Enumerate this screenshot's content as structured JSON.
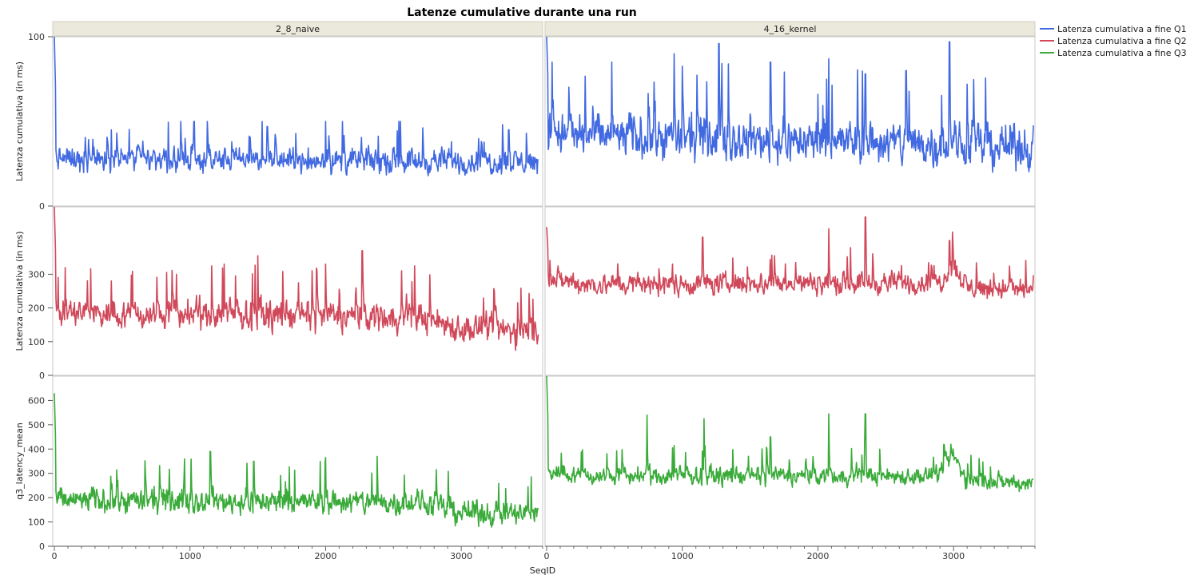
{
  "chart_data": {
    "type": "line",
    "title": "Latenze cumulative durante una run",
    "xlabel": "SeqID",
    "x_ticks": [
      0,
      1000,
      2000,
      3000
    ],
    "columns": [
      {
        "name": "2_8_naive",
        "xlim": [
          0,
          3600
        ]
      },
      {
        "name": "4_16_kernel",
        "xlim": [
          0,
          3600
        ]
      }
    ],
    "legend_position": "top-right",
    "rows": [
      {
        "series_name": "Latenza cumulativa a fine Q1",
        "color": "#4169e1",
        "ylabel": "Latenza cumulativa (in ms)",
        "ylim": [
          0,
          100
        ],
        "y_ticks": [
          0,
          100
        ],
        "y_tick_labels": [
          "0",
          "100"
        ],
        "panels": [
          {
            "first_spike": 100,
            "baseline": [
              [
                0,
                28
              ],
              [
                3600,
                26
              ]
            ],
            "noise": 5,
            "min": 13,
            "max": 50,
            "peaks": [
              [
                420,
                45
              ],
              [
                1030,
                50
              ],
              [
                1570,
                47
              ],
              [
                2000,
                50
              ],
              [
                2540,
                50
              ],
              [
                3350,
                45
              ]
            ]
          },
          {
            "first_spike": 100,
            "baseline": [
              [
                0,
                45
              ],
              [
                200,
                42
              ],
              [
                3600,
                35
              ]
            ],
            "noise": 9,
            "min": 20,
            "max": 97,
            "peaks": [
              [
                40,
                85
              ],
              [
                480,
                85
              ],
              [
                940,
                90
              ],
              [
                1270,
                96
              ],
              [
                1650,
                85
              ],
              [
                2080,
                87
              ],
              [
                2350,
                78
              ],
              [
                2650,
                80
              ],
              [
                2970,
                97
              ],
              [
                3100,
                72
              ]
            ]
          }
        ]
      },
      {
        "series_name": "Latenza cumulativa a fine Q2",
        "color": "#d0485a",
        "ylabel": "Latenza cumulativa (in ms)",
        "ylim": [
          0,
          500
        ],
        "y_ticks": [
          0,
          100,
          200,
          300
        ],
        "y_tick_labels": [
          "0",
          "100",
          "200",
          "300"
        ],
        "panels": [
          {
            "first_spike": 500,
            "baseline": [
              [
                0,
                185
              ],
              [
                2700,
                175
              ],
              [
                3000,
                140
              ],
              [
                3600,
                130
              ]
            ],
            "noise": 30,
            "min": 65,
            "max": 370,
            "peaks": [
              [
                80,
                320
              ],
              [
                1160,
                325
              ],
              [
                1500,
                355
              ],
              [
                2270,
                370
              ],
              [
                2000,
                330
              ],
              [
                900,
                300
              ]
            ]
          },
          {
            "first_spike": 440,
            "baseline": [
              [
                0,
                290
              ],
              [
                300,
                270
              ],
              [
                2900,
                275
              ],
              [
                2990,
                330
              ],
              [
                3100,
                260
              ],
              [
                3600,
                255
              ]
            ],
            "noise": 22,
            "min": 175,
            "max": 470,
            "peaks": [
              [
                1150,
                410
              ],
              [
                2080,
                435
              ],
              [
                2350,
                470
              ],
              [
                2970,
                400
              ],
              [
                1680,
                355
              ]
            ]
          }
        ]
      },
      {
        "series_name": "Latenza cumulativa a fine Q3",
        "color": "#3aab3a",
        "ylabel": "q3_latency_mean",
        "ylim": [
          0,
          700
        ],
        "y_ticks": [
          0,
          100,
          200,
          300,
          400,
          500,
          600
        ],
        "y_tick_labels": [
          "0",
          "100",
          "200",
          "300",
          "400",
          "500",
          "600"
        ],
        "panels": [
          {
            "first_spike": 630,
            "baseline": [
              [
                0,
                190
              ],
              [
                2700,
                180
              ],
              [
                3000,
                140
              ],
              [
                3600,
                130
              ]
            ],
            "noise": 35,
            "min": 62,
            "max": 390,
            "peaks": [
              [
                1150,
                390
              ],
              [
                2000,
                365
              ],
              [
                2380,
                370
              ],
              [
                1470,
                350
              ]
            ]
          },
          {
            "first_spike": 700,
            "baseline": [
              [
                0,
                310
              ],
              [
                300,
                290
              ],
              [
                2900,
                290
              ],
              [
                2990,
                380
              ],
              [
                3100,
                270
              ],
              [
                3600,
                260
              ]
            ],
            "noise": 25,
            "min": 180,
            "max": 545,
            "peaks": [
              [
                740,
                540
              ],
              [
                1160,
                525
              ],
              [
                2080,
                545
              ],
              [
                2350,
                545
              ],
              [
                1650,
                450
              ],
              [
                2980,
                420
              ]
            ]
          }
        ]
      }
    ]
  }
}
